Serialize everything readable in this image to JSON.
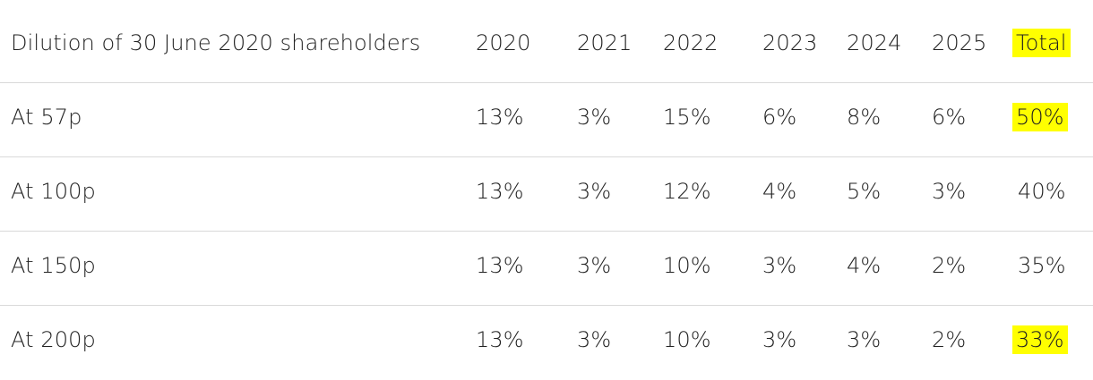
{
  "table": {
    "header": [
      "Dilution of 30 June 2020 shareholders",
      "2020",
      "2021",
      "2022",
      "2023",
      "2024",
      "2025",
      "Total"
    ],
    "rows": [
      [
        "At 57p",
        "13%",
        "3%",
        "15%",
        "6%",
        "8%",
        "6%",
        "50%"
      ],
      [
        "At 100p",
        "13%",
        "3%",
        "12%",
        "4%",
        "5%",
        "3%",
        "40%"
      ],
      [
        "At 150p",
        "13%",
        "3%",
        "10%",
        "3%",
        "4%",
        "2%",
        "35%"
      ],
      [
        "At 200p",
        "13%",
        "3%",
        "10%",
        "3%",
        "3%",
        "2%",
        "33%"
      ]
    ]
  },
  "highlight_color": "#ffff00"
}
